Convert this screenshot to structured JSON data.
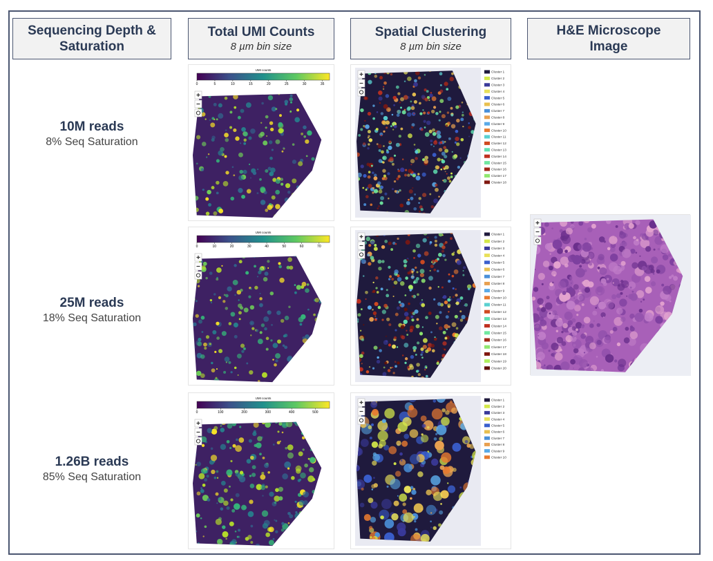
{
  "columns": [
    {
      "title": "Sequencing Depth & Saturation"
    },
    {
      "title": "Total UMI Counts",
      "subtitle": "8 µm bin size"
    },
    {
      "title": "Spatial Clustering",
      "subtitle": "8 µm bin size"
    },
    {
      "title": "H&E Microscope Image"
    }
  ],
  "cluster_colors": [
    "#1f1a3d",
    "#d4e84a",
    "#3a3a9a",
    "#e8e05a",
    "#3a5fcd",
    "#e8c050",
    "#4a90d9",
    "#e8a050",
    "#5aaae8",
    "#e87a30",
    "#5ad0d0",
    "#d04a20",
    "#60e0b0",
    "#c03020",
    "#70e8a0",
    "#a02818",
    "#90e870",
    "#801810",
    "#b0f060",
    "#601008"
  ],
  "rows": [
    {
      "reads": "10M reads",
      "saturation": "8% Seq Saturation",
      "umi": {
        "colorbar_title": "UMI counts",
        "lim": [
          0,
          37
        ],
        "ticks": [
          0,
          5,
          10,
          15,
          20,
          25,
          30,
          35
        ]
      },
      "clusters": [
        "Cluster 1",
        "Cluster 2",
        "Cluster 3",
        "Cluster 4",
        "Cluster 5",
        "Cluster 6",
        "Cluster 7",
        "Cluster 8",
        "Cluster 9",
        "Cluster 10",
        "Cluster 11",
        "Cluster 12",
        "Cluster 13",
        "Cluster 14",
        "Cluster 15",
        "Cluster 16",
        "Cluster 17",
        "Cluster 18"
      ]
    },
    {
      "reads": "25M reads",
      "saturation": "18% Seq Saturation",
      "umi": {
        "colorbar_title": "UMI counts",
        "lim": [
          0,
          76
        ],
        "ticks": [
          0,
          10,
          20,
          30,
          40,
          50,
          60,
          70
        ]
      },
      "clusters": [
        "Cluster 1",
        "Cluster 2",
        "Cluster 3",
        "Cluster 4",
        "Cluster 5",
        "Cluster 6",
        "Cluster 7",
        "Cluster 8",
        "Cluster 9",
        "Cluster 10",
        "Cluster 11",
        "Cluster 12",
        "Cluster 13",
        "Cluster 14",
        "Cluster 15",
        "Cluster 16",
        "Cluster 17",
        "Cluster 18",
        "Cluster 19",
        "Cluster 20"
      ]
    },
    {
      "reads": "1.26B reads",
      "saturation": "85% Seq Saturation",
      "umi": {
        "colorbar_title": "UMI counts",
        "lim": [
          0,
          560
        ],
        "ticks": [
          0,
          100,
          200,
          300,
          400,
          500
        ]
      },
      "clusters": [
        "Cluster 1",
        "Cluster 2",
        "Cluster 3",
        "Cluster 4",
        "Cluster 5",
        "Cluster 6",
        "Cluster 7",
        "Cluster 8",
        "Cluster 9",
        "Cluster 10"
      ]
    }
  ]
}
